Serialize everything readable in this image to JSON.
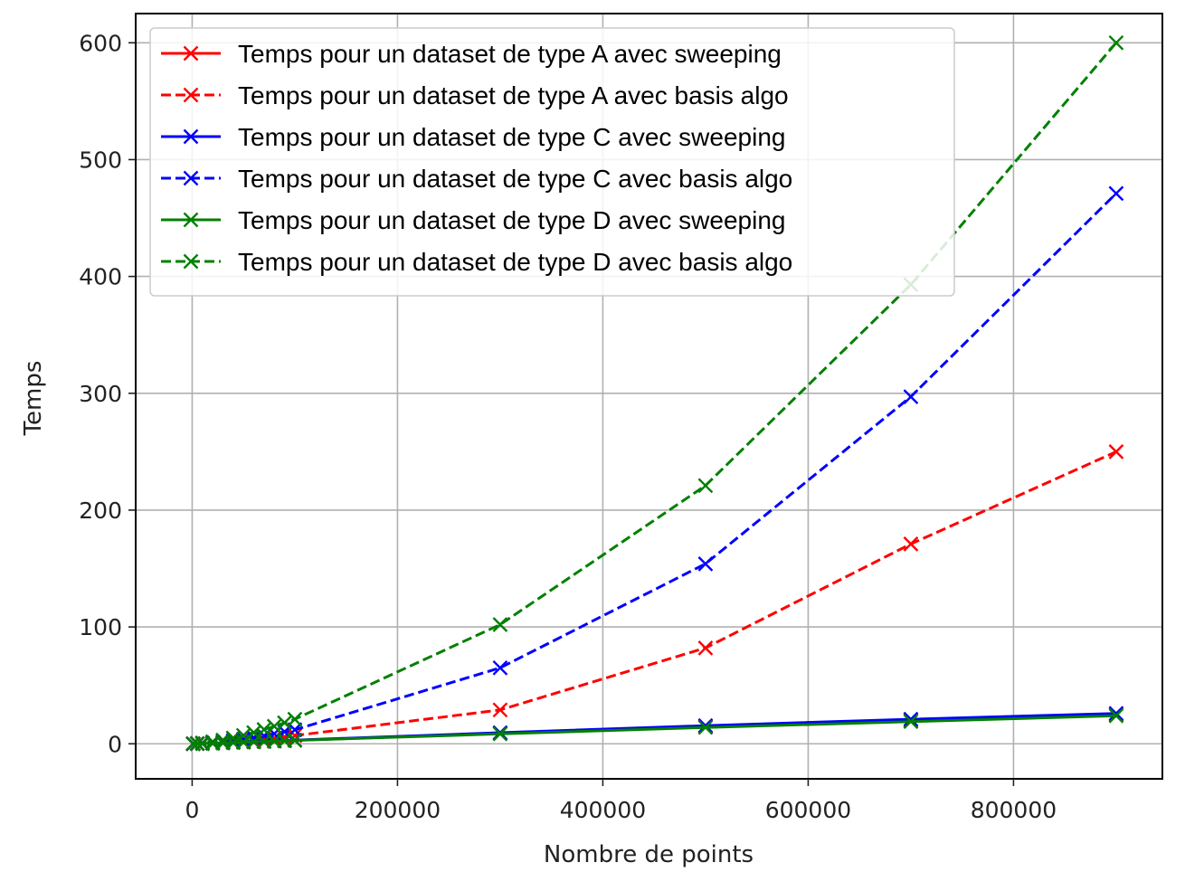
{
  "chart_data": {
    "type": "line",
    "title": "",
    "xlabel": "Nombre de points",
    "ylabel": "Temps",
    "xlim": [
      -55000,
      945000
    ],
    "ylim": [
      -30,
      625
    ],
    "xticks": [
      0,
      200000,
      400000,
      600000,
      800000
    ],
    "xtick_labels": [
      "0",
      "200000",
      "400000",
      "600000",
      "800000"
    ],
    "yticks": [
      0,
      100,
      200,
      300,
      400,
      500,
      600
    ],
    "ytick_labels": [
      "0",
      "100",
      "200",
      "300",
      "400",
      "500",
      "600"
    ],
    "grid": true,
    "legend_position": "top-left",
    "x": [
      1000,
      5000,
      10000,
      20000,
      30000,
      40000,
      50000,
      60000,
      70000,
      80000,
      90000,
      100000,
      300000,
      500000,
      700000,
      900000
    ],
    "series": [
      {
        "name": "Temps pour un dataset de type A avec sweeping",
        "color": "#ff0000",
        "linestyle": "solid",
        "marker": "x",
        "values": [
          0,
          0.1,
          0.2,
          0.5,
          0.8,
          1.0,
          1.3,
          1.6,
          1.9,
          2.2,
          2.6,
          3.0,
          9,
          15,
          20,
          25
        ]
      },
      {
        "name": "Temps pour un dataset de type A avec basis algo",
        "color": "#ff0000",
        "linestyle": "dashed",
        "marker": "x",
        "values": [
          0,
          0.1,
          0.3,
          0.6,
          1.0,
          1.6,
          2.2,
          3.0,
          3.8,
          4.8,
          5.8,
          7,
          29,
          82,
          171,
          250
        ]
      },
      {
        "name": "Temps pour un dataset de type C avec sweeping",
        "color": "#0000ff",
        "linestyle": "solid",
        "marker": "x",
        "values": [
          0,
          0.1,
          0.2,
          0.5,
          0.8,
          1.1,
          1.4,
          1.7,
          2.0,
          2.3,
          2.7,
          3.1,
          9.5,
          15.5,
          21,
          26
        ]
      },
      {
        "name": "Temps pour un dataset de type C avec basis algo",
        "color": "#0000ff",
        "linestyle": "dashed",
        "marker": "x",
        "values": [
          0,
          0.2,
          0.5,
          1.0,
          1.8,
          2.8,
          4.0,
          5.3,
          6.8,
          8.5,
          10.3,
          12,
          65,
          154,
          297,
          471
        ]
      },
      {
        "name": "Temps pour un dataset de type D avec sweeping",
        "color": "#008000",
        "linestyle": "solid",
        "marker": "x",
        "values": [
          0,
          0.1,
          0.2,
          0.4,
          0.7,
          1.0,
          1.3,
          1.6,
          1.9,
          2.2,
          2.5,
          2.9,
          8.5,
          14,
          19,
          24
        ]
      },
      {
        "name": "Temps pour un dataset de type D avec basis algo",
        "color": "#008000",
        "linestyle": "dashed",
        "marker": "x",
        "values": [
          0,
          0.3,
          0.8,
          1.8,
          3.2,
          5.0,
          7.2,
          9.6,
          12.2,
          15.0,
          18.0,
          21,
          102,
          221,
          393,
          600
        ]
      }
    ]
  }
}
